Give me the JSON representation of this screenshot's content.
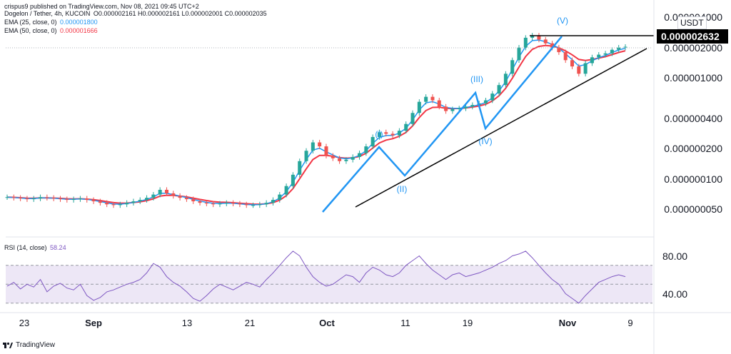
{
  "header": {
    "published": "crispus9 published on TradingView.com, Nov 08, 2021 09:45 UTC+2",
    "symbol": "Dogelon / Tether, 4h, KUCOIN",
    "ohlc": "O0.000002161 H0.000002161 L0.000002001 C0.000002035",
    "ema25_label": "EMA (25, close, 0)",
    "ema25_value": "0.000001800",
    "ema50_label": "EMA (50, close, 0)",
    "ema50_value": "0.000001666",
    "rsi_label": "RSI (14, close)",
    "rsi_value": "58.24"
  },
  "price_axis": {
    "currency": "USDT",
    "current_price": "0.000002632",
    "labels": [
      "0.000004000",
      "0.000002000",
      "0.000001000",
      "0.000000400",
      "0.000000200",
      "0.000000100",
      "0.000000050"
    ]
  },
  "rsi_axis": {
    "labels": [
      "80.00",
      "40.00"
    ]
  },
  "time_axis": {
    "labels": [
      "23",
      "Sep",
      "13",
      "21",
      "Oct",
      "11",
      "19",
      "Nov",
      "9"
    ],
    "bold": [
      false,
      true,
      false,
      false,
      true,
      false,
      false,
      true,
      false
    ]
  },
  "waves": [
    "(I)",
    "(II)",
    "(III)",
    "(IV)",
    "(V)"
  ],
  "footer": {
    "brand": "TradingView"
  },
  "colors": {
    "wave_line": "#2196f3",
    "ema25": "#2196f3",
    "ema50": "#f23645",
    "up_candle": "#26a69a",
    "down_candle": "#ef5350",
    "rsi_line": "#7e57c2",
    "rsi_band": "#ede7f6",
    "trendline": "#000000"
  },
  "chart_data": {
    "type": "candlestick",
    "price_scale": "log",
    "candles_close": [
      6.6e-08,
      6.5e-08,
      6.4e-08,
      6.3e-08,
      6.4e-08,
      6.6e-08,
      6.5e-08,
      6.4e-08,
      6.3e-08,
      6.2e-08,
      6.3e-08,
      6.4e-08,
      6.2e-08,
      6e-08,
      5.8e-08,
      5.6e-08,
      5.5e-08,
      5.6e-08,
      5.8e-08,
      6e-08,
      6.2e-08,
      6.5e-08,
      7e-08,
      7.8e-08,
      7.2e-08,
      6.8e-08,
      6.5e-08,
      6.3e-08,
      6e-08,
      5.8e-08,
      5.7e-08,
      5.6e-08,
      5.7e-08,
      5.8e-08,
      5.7e-08,
      5.6e-08,
      5.5e-08,
      5.5e-08,
      5.6e-08,
      5.8e-08,
      6.2e-08,
      7e-08,
      8.5e-08,
      1.1e-07,
      1.5e-07,
      1.9e-07,
      2.3e-07,
      2.1e-07,
      1.7e-07,
      1.6e-07,
      1.5e-07,
      1.55e-07,
      1.65e-07,
      1.8e-07,
      2.1e-07,
      2.6e-07,
      2.9e-07,
      2.8e-07,
      2.7e-07,
      3e-07,
      3.5e-07,
      4.5e-07,
      5.8e-07,
      6.5e-07,
      6e-07,
      5.2e-07,
      4.7e-07,
      4.9e-07,
      5e-07,
      5.2e-07,
      5.4e-07,
      5.6e-07,
      6e-07,
      7e-07,
      8.5e-07,
      1.1e-06,
      1.5e-06,
      2e-06,
      2.5e-06,
      2.632e-06,
      2.4e-06,
      2.2e-06,
      2e-06,
      1.8e-06,
      1.5e-06,
      1.3e-06,
      1.1e-06,
      1.4e-06,
      1.6e-06,
      1.7e-06,
      1.75e-06,
      1.9e-06,
      2e-06,
      2.035e-06
    ],
    "rsi": [
      48,
      52,
      45,
      50,
      47,
      55,
      42,
      48,
      51,
      46,
      44,
      50,
      38,
      33,
      36,
      42,
      44,
      47,
      50,
      52,
      55,
      62,
      72,
      68,
      58,
      52,
      48,
      42,
      35,
      32,
      38,
      45,
      50,
      47,
      44,
      48,
      52,
      50,
      47,
      55,
      62,
      70,
      78,
      85,
      80,
      68,
      58,
      52,
      48,
      50,
      55,
      60,
      58,
      52,
      62,
      68,
      65,
      60,
      58,
      62,
      70,
      75,
      80,
      72,
      65,
      60,
      55,
      60,
      62,
      58,
      60,
      62,
      65,
      68,
      72,
      75,
      80,
      82,
      85,
      78,
      70,
      62,
      55,
      50,
      40,
      35,
      30,
      38,
      45,
      52,
      55,
      58,
      60,
      58
    ],
    "rsi_range": [
      20,
      100
    ],
    "rsi_levels": [
      70,
      50,
      30
    ]
  }
}
